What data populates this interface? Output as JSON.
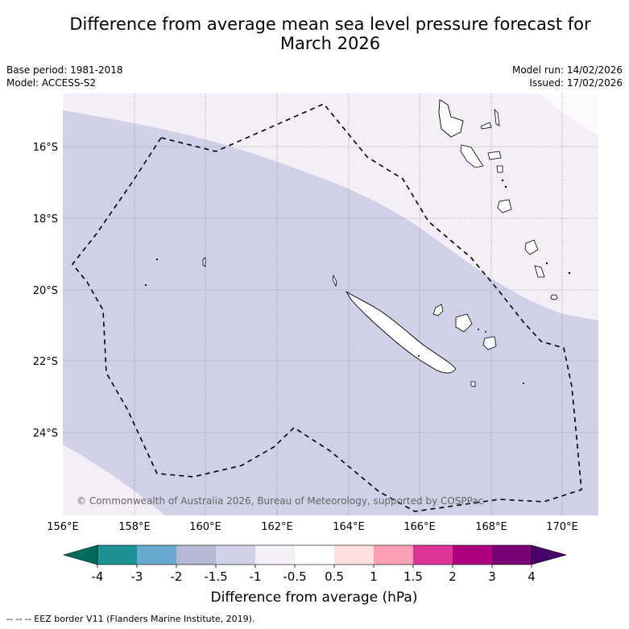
{
  "title": {
    "line1": "Difference from average mean sea level pressure forecast for",
    "line2": "March 2026"
  },
  "meta": {
    "base_period": "Base period: 1981-2018",
    "model": "Model: ACCESS-S2",
    "model_run": "Model run: 14/02/2026",
    "issued": "Issued: 17/02/2026"
  },
  "map": {
    "lat_labels": [
      "16°S",
      "18°S",
      "20°S",
      "22°S",
      "24°S"
    ],
    "lon_labels": [
      "156°E",
      "158°E",
      "160°E",
      "162°E",
      "164°E",
      "166°E",
      "168°E",
      "170°E"
    ],
    "copyright": "© Commonwealth of Australia 2026, Bureau of Meteorology, supported by COSPPac",
    "colors": {
      "band_minus1_minus0_5": "#f4eef7",
      "band_minus1_5_minus1": "#d0d1e6",
      "coastline": "#000000",
      "gridline": "#888888"
    }
  },
  "colorbar": {
    "ticks": [
      "-4",
      "-3",
      "-2",
      "-1.5",
      "-1",
      "-0.5",
      "0.5",
      "1",
      "1.5",
      "2",
      "3",
      "4"
    ],
    "colors": [
      "#1b9296",
      "#67a9cf",
      "#b4bad4",
      "#d0d1e6",
      "#f4eef7",
      "#ffffff",
      "#fde0dd",
      "#fa9fb5",
      "#dd3497",
      "#ae017e",
      "#7a0177"
    ],
    "extend_low_color": "#016c59",
    "extend_high_color": "#49006a",
    "label": "Difference from average (hPa)"
  },
  "footer": {
    "eez_note": "--  --  -- EEZ border V11 (Flanders Marine Institute, 2019)."
  }
}
